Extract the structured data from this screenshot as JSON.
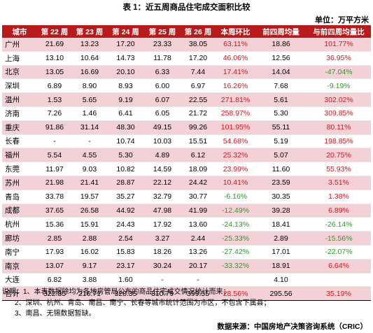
{
  "title": "表 1：近五周商品住宅成交面积比较",
  "unit": "单位：万平方米",
  "headers": [
    "城市",
    "第 22 周",
    "第 23 周",
    "第 24 周",
    "第 25 周",
    "第 26 周",
    "本周环比",
    "前四周均量",
    "与前四周均量比"
  ],
  "rows": [
    {
      "city": "广州",
      "w22": "21.69",
      "w23": "13.23",
      "w24": "17.20",
      "w25": "23.33",
      "w26": "38.05",
      "wow": "63.11%",
      "avg4": "18.86",
      "vsavg": "101.77%",
      "wow_dir": "pos",
      "vs_dir": "pos",
      "bg": "pink"
    },
    {
      "city": "上海",
      "w22": "13.10",
      "w23": "10.64",
      "w24": "14.73",
      "w25": "11.78",
      "w26": "17.20",
      "wow": "46.06%",
      "avg4": "12.56",
      "vsavg": "36.95%",
      "wow_dir": "pos",
      "vs_dir": "pos",
      "bg": "white"
    },
    {
      "city": "北京",
      "w22": "13.05",
      "w23": "16.69",
      "w24": "20.10",
      "w25": "6.33",
      "w26": "7.44",
      "wow": "17.41%",
      "avg4": "14.04",
      "vsavg": "-47.04%",
      "wow_dir": "pos",
      "vs_dir": "neg",
      "bg": "pink"
    },
    {
      "city": "深圳",
      "w22": "6.89",
      "w23": "8.90",
      "w24": "8.93",
      "w25": "6.00",
      "w26": "6.97",
      "wow": "16.26%",
      "avg4": "7.68",
      "vsavg": "-9.19%",
      "wow_dir": "pos",
      "vs_dir": "neg",
      "bg": "white"
    },
    {
      "city": "温州",
      "w22": "1.53",
      "w23": "5.65",
      "w24": "9.19",
      "w25": "6.07",
      "w26": "22.55",
      "wow": "271.81%",
      "avg4": "5.61",
      "vsavg": "302.02%",
      "wow_dir": "pos",
      "vs_dir": "pos",
      "bg": "pink"
    },
    {
      "city": "济南",
      "w22": "7.26",
      "w23": "1.46",
      "w24": "6.41",
      "w25": "6.05",
      "w26": "21.72",
      "wow": "258.97%",
      "avg4": "5.30",
      "vsavg": "309.85%",
      "wow_dir": "pos",
      "vs_dir": "pos",
      "bg": "white"
    },
    {
      "city": "重庆",
      "w22": "91.86",
      "w23": "31.14",
      "w24": "48.30",
      "w25": "49.15",
      "w26": "99.26",
      "wow": "101.95%",
      "avg4": "55.11",
      "vsavg": "80.11%",
      "wow_dir": "pos",
      "vs_dir": "pos",
      "bg": "pink"
    },
    {
      "city": "长春",
      "w22": "-",
      "w23": "-",
      "w24": "10.74",
      "w25": "10.03",
      "w26": "15.51",
      "wow": "54.68%",
      "avg4": "5.19",
      "vsavg": "198.85%",
      "wow_dir": "pos",
      "vs_dir": "pos",
      "bg": "white"
    },
    {
      "city": "福州",
      "w22": "5.54",
      "w23": "4.55",
      "w24": "5.30",
      "w25": "4.89",
      "w26": "6.12",
      "wow": "25.32%",
      "avg4": "5.07",
      "vsavg": "20.75%",
      "wow_dir": "pos",
      "vs_dir": "pos",
      "bg": "pink"
    },
    {
      "city": "东莞",
      "w22": "11.97",
      "w23": "9.03",
      "w24": "10.82",
      "w25": "14.59",
      "w26": "18.09",
      "wow": "23.99%",
      "avg4": "11.60",
      "vsavg": "55.93%",
      "wow_dir": "pos",
      "vs_dir": "pos",
      "bg": "white"
    },
    {
      "city": "苏州",
      "w22": "21.98",
      "w23": "21.41",
      "w24": "28.87",
      "w25": "22.12",
      "w26": "24.42",
      "wow": "10.41%",
      "avg4": "23.59",
      "vsavg": "3.51%",
      "wow_dir": "pos",
      "vs_dir": "pos",
      "bg": "pink"
    },
    {
      "city": "青岛",
      "w22": "33.78",
      "w23": "19.57",
      "w24": "35.27",
      "w25": "32.79",
      "w26": "30.77",
      "wow": "-6.16%",
      "avg4": "30.35",
      "vsavg": "1.38%",
      "wow_dir": "neg",
      "vs_dir": "pos",
      "bg": "white"
    },
    {
      "city": "成都",
      "w22": "37.65",
      "w23": "26.58",
      "w24": "44.92",
      "w25": "47.98",
      "w26": "41.99",
      "wow": "-12.49%",
      "avg4": "39.28",
      "vsavg": "6.89%",
      "wow_dir": "neg",
      "vs_dir": "pos",
      "bg": "pink"
    },
    {
      "city": "杭州",
      "w22": "15.36",
      "w23": "15.91",
      "w24": "24.43",
      "w25": "17.92",
      "w26": "13.60",
      "wow": "-24.13%",
      "avg4": "18.41",
      "vsavg": "-26.14%",
      "wow_dir": "neg",
      "vs_dir": "neg",
      "bg": "white"
    },
    {
      "city": "廊坊",
      "w22": "2.85",
      "w23": "2.88",
      "w24": "2.54",
      "w25": "3.27",
      "w26": "2.44",
      "wow": "-25.33%",
      "avg4": "2.89",
      "vsavg": "-15.56%",
      "wow_dir": "neg",
      "vs_dir": "neg",
      "bg": "pink"
    },
    {
      "city": "南宁",
      "w22": "17.93",
      "w23": "16.02",
      "w24": "15.83",
      "w25": "18.26",
      "w26": "13.26",
      "wow": "-27.42%",
      "avg4": "17.01",
      "vsavg": "-22.07%",
      "wow_dir": "neg",
      "vs_dir": "neg",
      "bg": "white"
    },
    {
      "city": "南京",
      "w22": "13.07",
      "w23": "9.17",
      "w24": "23.17",
      "w25": "30.24",
      "w26": "20.17",
      "wow": "-33.32%",
      "avg4": "18.91",
      "vsavg": "6.64%",
      "wow_dir": "neg",
      "vs_dir": "pos",
      "bg": "pink"
    },
    {
      "city": "大连",
      "w22": "6.82",
      "w23": "3.88",
      "w24": "1.60",
      "w25": "-",
      "w26": "-",
      "wow": "",
      "avg4": "4.10",
      "vsavg": "",
      "wow_dir": "",
      "vs_dir": "",
      "bg": "white"
    }
  ],
  "total": {
    "city": "合计",
    "w22": "322.35",
    "w23": "216.71",
    "w24": "328.35",
    "w25": "310.79",
    "w26": "399.55",
    "wow": "28.56%",
    "avg4": "295.56",
    "vsavg": "35.19%",
    "wow_dir": "pos",
    "vs_dir": "pos",
    "bg": "pink"
  },
  "notes": [
    "说明：1、本表数据除均为各地房管局公布的商品住宅成交情况统计而来；",
    "2、深圳、杭州、青岛、南昌、南宁、长春等城市统计范围为市区，不包含下属县；",
    "3、南昌、无锡数据暂缺。"
  ],
  "source": "数据来源：中国房地产决策咨询系统（CRIC）"
}
